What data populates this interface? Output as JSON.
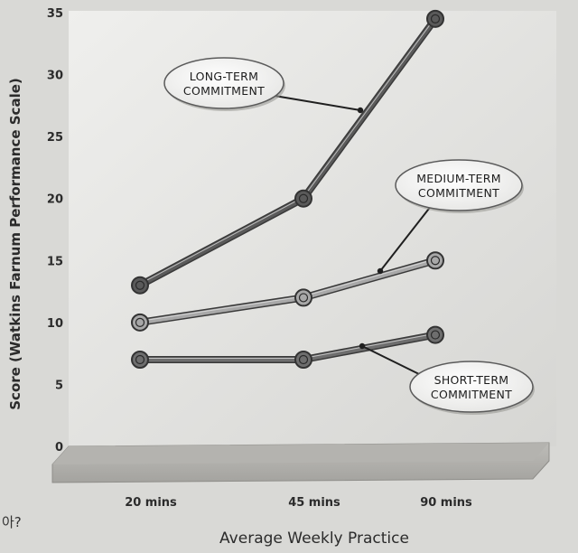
{
  "chart_data": {
    "type": "line",
    "categories": [
      "20 mins",
      "45 mins",
      "90 mins"
    ],
    "series": [
      {
        "name": "LONG-TERM COMMITMENT",
        "values": [
          13,
          20,
          34.5
        ],
        "color": "#5a5a5a"
      },
      {
        "name": "MEDIUM-TERM COMMITMENT",
        "values": [
          10,
          12,
          15
        ],
        "color": "#a8a8a8"
      },
      {
        "name": "SHORT-TERM COMMITMENT",
        "values": [
          7,
          7,
          9
        ],
        "color": "#6e6e6e"
      }
    ],
    "ylabel": "Score (Watkins Farnum Performance Scale)",
    "xlabel": "Average Weekly Practice",
    "ylim": [
      0,
      35
    ],
    "yticks": [
      0,
      5,
      10,
      15,
      20,
      25,
      30,
      35
    ],
    "grid": false,
    "callouts": [
      {
        "lines": [
          "LONG-TERM",
          "COMMITMENT"
        ],
        "series": 0
      },
      {
        "lines": [
          "MEDIUM-TERM",
          "COMMITMENT"
        ],
        "series": 1
      },
      {
        "lines": [
          "SHORT-TERM",
          "COMMITMENT"
        ],
        "series": 2
      }
    ]
  },
  "margin_note": "아?"
}
